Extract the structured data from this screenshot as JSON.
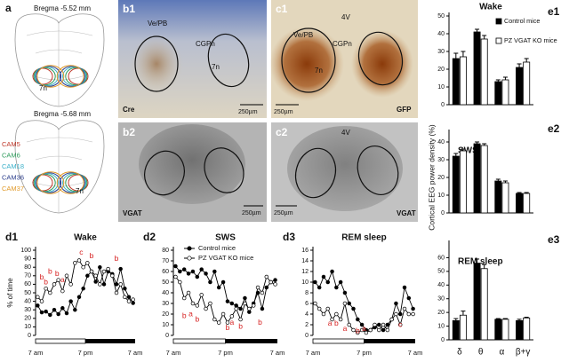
{
  "panel_a": {
    "label": "a",
    "sections": [
      "Bregma -5.52 mm",
      "Bregma -5.68 mm"
    ],
    "region": "7n",
    "cases": [
      {
        "name": "CAM5",
        "color": "#c0392b"
      },
      {
        "name": "CAM6",
        "color": "#2e9b5b"
      },
      {
        "name": "CAM18",
        "color": "#3bb0c9"
      },
      {
        "name": "CAM36",
        "color": "#2c3e8c"
      },
      {
        "name": "CAM37",
        "color": "#e09a2b"
      }
    ]
  },
  "images": [
    {
      "label": "b1",
      "stain": "Cre",
      "scale": "250µm",
      "regions": [
        "Ve/PB",
        "CGPn",
        "7n"
      ]
    },
    {
      "label": "c1",
      "stain": "GFP",
      "scale": "250µm",
      "regions": [
        "Ve/PB",
        "CGPn",
        "7n",
        "4V"
      ]
    },
    {
      "label": "b2",
      "stain": "VGAT",
      "scale": "250µm"
    },
    {
      "label": "c2",
      "stain": "VGAT",
      "scale": "250µm",
      "regions": [
        "4V"
      ]
    }
  ],
  "chart_data": [
    {
      "type": "line",
      "panel": "d1",
      "title": "Wake",
      "ylabel": "% of time",
      "x": [
        0.5,
        1.5,
        2.5,
        3.5,
        4.5,
        5.5,
        6.5,
        7.5,
        8.5,
        9.5,
        10.5,
        11.5,
        12.5,
        13.5,
        14.5,
        15.5,
        16.5,
        17.5,
        18.5,
        19.5,
        20.5,
        21.5,
        22.5,
        23.5
      ],
      "xlim": [
        0,
        24
      ],
      "xticks": [
        {
          "value": 0,
          "label": "7 am"
        },
        {
          "value": 12,
          "label": "7 pm"
        },
        {
          "value": 24,
          "label": "7 am"
        }
      ],
      "ylim": [
        0,
        100
      ],
      "yticks": [
        0,
        10,
        20,
        30,
        40,
        50,
        60,
        70,
        80,
        90,
        100
      ],
      "series": [
        {
          "color": "#000000",
          "values": [
            35,
            27,
            28,
            24,
            30,
            25,
            32,
            26,
            40,
            30,
            45,
            55,
            70,
            75,
            63,
            80,
            60,
            75,
            72,
            60,
            78,
            55,
            45,
            38
          ]
        },
        {
          "color": "#ffffff",
          "values": [
            45,
            40,
            55,
            50,
            60,
            65,
            52,
            70,
            60,
            85,
            88,
            80,
            85,
            75,
            70,
            60,
            75,
            78,
            70,
            50,
            60,
            45,
            40,
            42
          ]
        }
      ],
      "annotations": [
        {
          "text": "b",
          "x": 1.5,
          "y": 68
        },
        {
          "text": "b",
          "x": 3.5,
          "y": 75
        },
        {
          "text": "b",
          "x": 5.2,
          "y": 72
        },
        {
          "text": "a",
          "x": 6.5,
          "y": 65
        },
        {
          "text": "b",
          "x": 2.5,
          "y": 62
        },
        {
          "text": "c",
          "x": 11,
          "y": 97
        },
        {
          "text": "b",
          "x": 13.5,
          "y": 93
        },
        {
          "text": "b",
          "x": 19.5,
          "y": 90
        }
      ]
    },
    {
      "type": "line",
      "panel": "d2",
      "title": "SWS",
      "legend": "top",
      "x": [
        0.5,
        1.5,
        2.5,
        3.5,
        4.5,
        5.5,
        6.5,
        7.5,
        8.5,
        9.5,
        10.5,
        11.5,
        12.5,
        13.5,
        14.5,
        15.5,
        16.5,
        17.5,
        18.5,
        19.5,
        20.5,
        21.5,
        22.5,
        23.5
      ],
      "xlim": [
        0,
        24
      ],
      "xticks": [
        {
          "value": 0,
          "label": "7 am"
        },
        {
          "value": 12,
          "label": "7 pm"
        },
        {
          "value": 24,
          "label": "7 am"
        }
      ],
      "ylim": [
        0,
        80
      ],
      "yticks": [
        0,
        10,
        20,
        30,
        40,
        50,
        60,
        70,
        80
      ],
      "series": [
        {
          "name": "Control mice",
          "color": "#000000",
          "values": [
            65,
            60,
            62,
            58,
            60,
            55,
            62,
            58,
            50,
            60,
            45,
            50,
            32,
            30,
            28,
            25,
            35,
            22,
            30,
            40,
            25,
            45,
            50,
            52
          ]
        },
        {
          "name": "PZ VGAT KO mice",
          "color": "#ffffff",
          "values": [
            55,
            50,
            35,
            40,
            30,
            28,
            38,
            25,
            30,
            15,
            12,
            20,
            12,
            18,
            25,
            15,
            30,
            25,
            28,
            45,
            40,
            55,
            50,
            48
          ]
        }
      ],
      "annotations": [
        {
          "text": "b",
          "x": 2.5,
          "y": 18
        },
        {
          "text": "a",
          "x": 4,
          "y": 20
        },
        {
          "text": "b",
          "x": 5.5,
          "y": 15
        },
        {
          "text": "b",
          "x": 12.5,
          "y": 7
        },
        {
          "text": "a",
          "x": 13.5,
          "y": 12
        },
        {
          "text": "b",
          "x": 15.5,
          "y": 8
        },
        {
          "text": "b",
          "x": 20,
          "y": 12
        }
      ]
    },
    {
      "type": "line",
      "panel": "d3",
      "title": "REM sleep",
      "x": [
        0.5,
        1.5,
        2.5,
        3.5,
        4.5,
        5.5,
        6.5,
        7.5,
        8.5,
        9.5,
        10.5,
        11.5,
        12.5,
        13.5,
        14.5,
        15.5,
        16.5,
        17.5,
        18.5,
        19.5,
        20.5,
        21.5,
        22.5,
        23.5
      ],
      "xlim": [
        0,
        24
      ],
      "xticks": [
        {
          "value": 0,
          "label": "7 am"
        },
        {
          "value": 12,
          "label": "7 pm"
        },
        {
          "value": 24,
          "label": "7 am"
        }
      ],
      "ylim": [
        0,
        16
      ],
      "yticks": [
        0,
        2,
        4,
        6,
        8,
        10,
        12,
        14,
        16
      ],
      "series": [
        {
          "color": "#000000",
          "values": [
            10,
            9,
            11,
            10,
            12,
            9,
            10,
            8,
            6,
            5,
            3,
            2,
            1,
            1,
            1.5,
            2,
            1,
            2,
            3,
            6,
            4,
            9,
            7,
            5
          ]
        },
        {
          "color": "#ffffff",
          "values": [
            6,
            5,
            4,
            5,
            3,
            4,
            3,
            6,
            2,
            1,
            0.5,
            1,
            0.5,
            1,
            2,
            1,
            2,
            1,
            3,
            4,
            2,
            5,
            4,
            4
          ]
        }
      ],
      "annotations": [
        {
          "text": "a",
          "x": 4,
          "y": 2.2
        },
        {
          "text": "b",
          "x": 5.5,
          "y": 2.2
        },
        {
          "text": "a",
          "x": 7.5,
          "y": 1.2
        },
        {
          "text": "b",
          "x": 10.5,
          "y": 0.8
        },
        {
          "text": "a",
          "x": 12,
          "y": 1.2
        },
        {
          "text": "c",
          "x": 20.5,
          "y": 2
        }
      ]
    },
    {
      "type": "bar",
      "panel": "e1",
      "title": "Wake",
      "legend": "upper right",
      "ylim": [
        0,
        50
      ],
      "yticks": [
        0,
        10,
        20,
        30,
        40,
        50
      ],
      "series": [
        {
          "name": "Control mice",
          "color": "#000000",
          "values": [
            26,
            41,
            13,
            21
          ],
          "errors": [
            3,
            1.5,
            1,
            2
          ]
        },
        {
          "name": "PZ VGAT KO mice",
          "color": "#ffffff",
          "values": [
            27,
            37,
            14,
            24
          ],
          "errors": [
            3,
            2,
            1.5,
            2
          ]
        }
      ]
    },
    {
      "type": "bar",
      "panel": "e2",
      "title": "SWS",
      "ylabel": "Cortical EEG power density (%)",
      "ylim": [
        0,
        45
      ],
      "yticks": [
        0,
        10,
        20,
        30,
        40
      ],
      "series": [
        {
          "color": "#000000",
          "values": [
            32,
            39,
            18,
            11
          ],
          "errors": [
            1.5,
            1,
            1,
            0.5
          ]
        },
        {
          "color": "#ffffff",
          "values": [
            35,
            38,
            17,
            11
          ],
          "errors": [
            1,
            1,
            1,
            0.5
          ]
        }
      ]
    },
    {
      "type": "bar",
      "panel": "e3",
      "title": "REM sleep",
      "categories": [
        "δ",
        "θ",
        "α",
        "β+γ"
      ],
      "ylim": [
        0,
        70
      ],
      "yticks": [
        0,
        10,
        20,
        30,
        40,
        50,
        60
      ],
      "series": [
        {
          "color": "#000000",
          "values": [
            14,
            56,
            15,
            14
          ],
          "errors": [
            1.5,
            3,
            0.5,
            1
          ]
        },
        {
          "color": "#ffffff",
          "values": [
            18,
            52,
            15,
            16
          ],
          "errors": [
            3,
            3,
            0.5,
            0.5
          ]
        }
      ]
    }
  ]
}
